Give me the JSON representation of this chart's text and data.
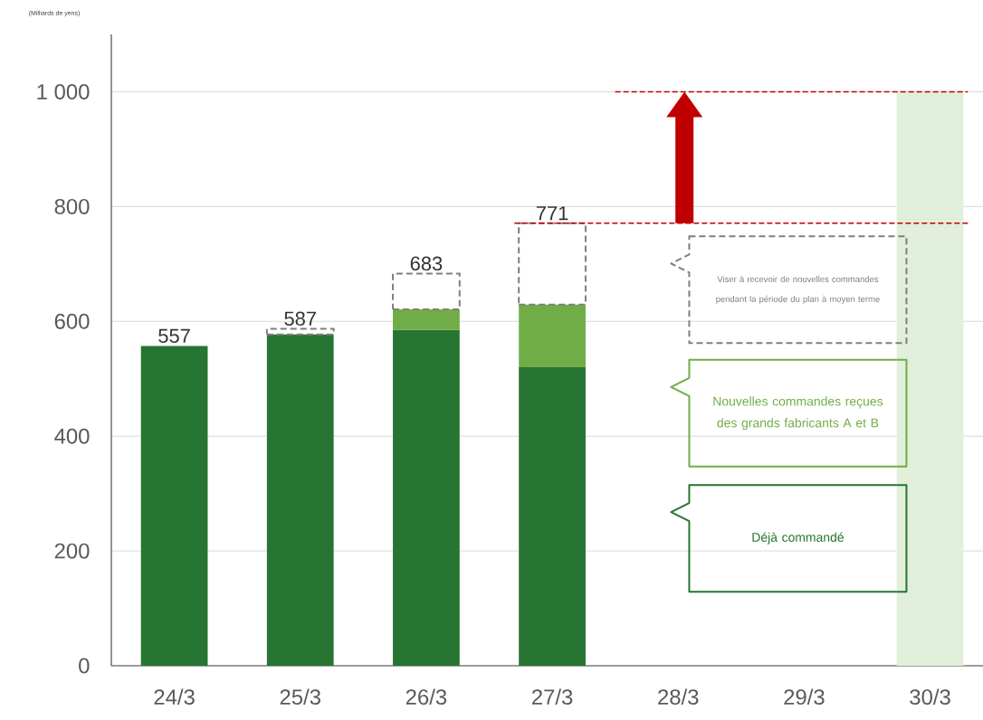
{
  "chart_data": {
    "type": "bar",
    "stacked": true,
    "ylabel": "(Milliards de yens)",
    "categories": [
      "24/3",
      "25/3",
      "26/3",
      "27/3",
      "28/3",
      "29/3",
      "30/3"
    ],
    "series": [
      {
        "name": "Déjà commandé",
        "color": "#267532",
        "values": [
          557,
          577,
          585,
          520,
          null,
          null,
          null
        ]
      },
      {
        "name": "Nouvelles commandes reçues des grands fabricants A et B",
        "color": "#70ad47",
        "values": [
          null,
          null,
          36,
          109,
          null,
          null,
          null
        ]
      },
      {
        "name": "Viser à recevoir de nouvelles commandes pendant la période du plan à moyen terme",
        "color": "#7f7f7f",
        "line_style": "dashed",
        "values": [
          null,
          10,
          62,
          142,
          null,
          null,
          null
        ]
      },
      {
        "color": "#e2efda",
        "values": [
          null,
          null,
          null,
          null,
          null,
          null,
          1000
        ]
      }
    ],
    "totals": [
      "557",
      "587",
      "683",
      "771",
      null,
      null,
      null
    ],
    "ylim": [
      0,
      1100
    ],
    "yticks": [
      0,
      200,
      400,
      600,
      800,
      {
        "value": 1000,
        "label": "1 000"
      }
    ],
    "grid": "y",
    "ref_lines": [
      {
        "axis": "y",
        "value": 771,
        "color": "#c00000",
        "line_style": "dashed"
      },
      {
        "axis": "y",
        "value": 1000,
        "color": "#c00000",
        "line_style": "dashed"
      }
    ]
  }
}
